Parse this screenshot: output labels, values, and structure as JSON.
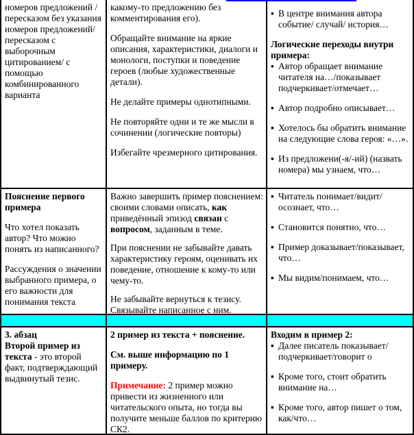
{
  "decor": {
    "bullet_marker": "▪",
    "cyan_band_color": "#00ffff",
    "link_underline_color": "#0000ee",
    "note_color": "#ff0000"
  },
  "table": {
    "r1c1": {
      "p1": "номеров предложений / пересказом без указания номеров предложений/ пересказом с выборочным цитированием/ с помощью комбинированного варианта"
    },
    "r1c2": {
      "p1": "какому-то предложению без комментирования его).",
      "p2": "Обращайте внимание на яркие описания, характеристики, диалоги и монологи, поступки и поведение героев (любые художественные детали).",
      "p3": "Не делайте примеры однотипными.",
      "p4": "Не повторяйте одни и те же мысли в сочинении (логические повторы)",
      "p5": "Избегайте чрезмерного цитирования."
    },
    "r1c3": {
      "b1": "В центре внимания автора событие/ случай/ история…",
      "heading": "Логические переходы внутри примера:",
      "b2": "Автор обращает внимание читателя на…/показывает подчеркивает/отмечает…",
      "b3": "Автор подробно описывает…",
      "b4": "Хотелось бы обратить внимание на следующие слова героя: «…».",
      "b5": "Из предложени(-я/-ий) (назвать номера) мы узнаем, что…"
    },
    "r2c1": {
      "heading": "Пояснение первого примера",
      "p1": "Что хотел показать автор? Что можно понять из написанного?",
      "p2": "Рассуждения о значении выбранного примера, о его важности для понимания текста"
    },
    "r2c2": {
      "p1_seg1": "Важно завершить пример пояснением: своими словами описать, ",
      "p1_bold1": "как",
      "p1_seg2": " приведённый  эпизод ",
      "p1_bold2": "связан",
      "p1_seg3": " с ",
      "p1_bold3": "вопросом",
      "p1_seg4": ", заданным в теме.",
      "p2": "При пояснении не забывайте давать характеристику героям, оценивать их поведение, отношение к кому-то или чему-то.",
      "p3": "Не забывайте вернуться к тезису. Связывайте написанное с ним."
    },
    "r2c3": {
      "b1": "Читатель понимает/видит/осознает, что…",
      "b2": "Становится понятно, что…",
      "b3": "Пример доказывает/показывает, что…",
      "b4": "Мы видим/понимаем, что…"
    },
    "r3c1": {
      "heading": "3. абзац",
      "bold_lead": "Второй пример из текста",
      "rest": " -  это второй факт, подтверждающий выдвинутый тезис."
    },
    "r3c2": {
      "p1": "2 пример из текста + пояснение.",
      "p2": "См. выше информацию по 1 примеру.",
      "note_label": "Примечание:",
      "note_rest": " 2 пример можно привести из жизненного или читательского опыта, но тогда вы получите меньше баллов по критерию СК2."
    },
    "r3c3": {
      "heading": "Входим в пример 2:",
      "b1": "Далее писатель показывает/ подчеркивает/говорит о",
      "b2": "Кроме того, стоит обратить внимание на…",
      "b3": "Кроме того, автор пишет о том, как/что…"
    }
  }
}
